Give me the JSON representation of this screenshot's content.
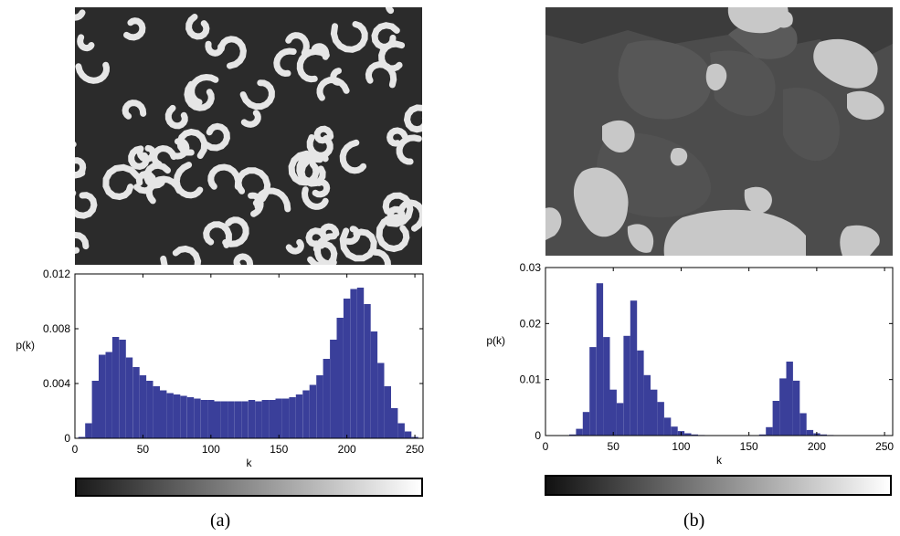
{
  "panels": [
    {
      "caption": "(a)",
      "image": "labyrinthine-pattern-texture",
      "chart_data": {
        "type": "bar",
        "ylabel": "p(k)",
        "xlabel": "k",
        "xlim": [
          0,
          256
        ],
        "ylim": [
          0,
          0.012
        ],
        "xticks": [
          0,
          50,
          100,
          150,
          200,
          250
        ],
        "yticks": [
          0,
          0.004,
          0.008,
          0.012
        ],
        "yticklabels": [
          "0",
          "0.004",
          "0.008",
          "0.012"
        ],
        "bar_color": "#3a3f9a",
        "x": [
          0,
          5,
          10,
          15,
          20,
          25,
          30,
          35,
          40,
          45,
          50,
          55,
          60,
          65,
          70,
          75,
          80,
          85,
          90,
          95,
          100,
          105,
          110,
          115,
          120,
          125,
          130,
          135,
          140,
          145,
          150,
          155,
          160,
          165,
          170,
          175,
          180,
          185,
          190,
          195,
          200,
          205,
          210,
          215,
          220,
          225,
          230,
          235,
          240,
          245,
          250,
          255
        ],
        "y": [
          0,
          0.0001,
          0.0011,
          0.0042,
          0.0061,
          0.0063,
          0.0074,
          0.0072,
          0.0059,
          0.0052,
          0.0046,
          0.0042,
          0.0038,
          0.0035,
          0.0033,
          0.0032,
          0.0031,
          0.003,
          0.0029,
          0.0028,
          0.0028,
          0.0027,
          0.0027,
          0.0027,
          0.0027,
          0.0027,
          0.0028,
          0.0027,
          0.0028,
          0.0028,
          0.0029,
          0.0029,
          0.003,
          0.0032,
          0.0035,
          0.0039,
          0.0046,
          0.0058,
          0.0072,
          0.0088,
          0.0102,
          0.0109,
          0.011,
          0.0098,
          0.0078,
          0.0055,
          0.0038,
          0.0022,
          0.0011,
          0.0005,
          0.0001,
          0
        ]
      },
      "gradient": {
        "from": "#1a1a1a",
        "to": "#ffffff"
      }
    },
    {
      "caption": "(b)",
      "image": "microstructure-micrograph",
      "chart_data": {
        "type": "bar",
        "ylabel": "p(k)",
        "xlabel": "k",
        "xlim": [
          0,
          256
        ],
        "ylim": [
          0,
          0.03
        ],
        "xticks": [
          0,
          50,
          100,
          150,
          200,
          250
        ],
        "yticks": [
          0,
          0.01,
          0.02,
          0.03
        ],
        "yticklabels": [
          "0",
          "0.01",
          "0.02",
          "0.03"
        ],
        "bar_color": "#3a3f9a",
        "x": [
          0,
          5,
          10,
          15,
          20,
          25,
          30,
          35,
          40,
          45,
          50,
          55,
          60,
          65,
          70,
          75,
          80,
          85,
          90,
          95,
          100,
          105,
          110,
          115,
          120,
          125,
          130,
          135,
          140,
          145,
          150,
          155,
          160,
          165,
          170,
          175,
          180,
          185,
          190,
          195,
          200,
          205,
          210,
          215,
          220,
          225,
          230,
          235,
          240,
          245,
          250,
          255
        ],
        "y": [
          0,
          0,
          0,
          0,
          0.0002,
          0.0012,
          0.0042,
          0.0158,
          0.0272,
          0.0176,
          0.0082,
          0.0058,
          0.0178,
          0.0241,
          0.0152,
          0.0108,
          0.0082,
          0.006,
          0.0032,
          0.0016,
          0.0008,
          0.0004,
          0.0002,
          0.0001,
          0,
          0,
          0,
          0,
          0,
          0,
          0,
          0,
          0.0002,
          0.0015,
          0.0062,
          0.0102,
          0.0132,
          0.0098,
          0.004,
          0.001,
          0.0004,
          0.0002,
          0.0001,
          0,
          0,
          0,
          0,
          0,
          0,
          0,
          0,
          0
        ]
      },
      "gradient": {
        "from": "#111111",
        "to": "#ffffff"
      }
    }
  ]
}
